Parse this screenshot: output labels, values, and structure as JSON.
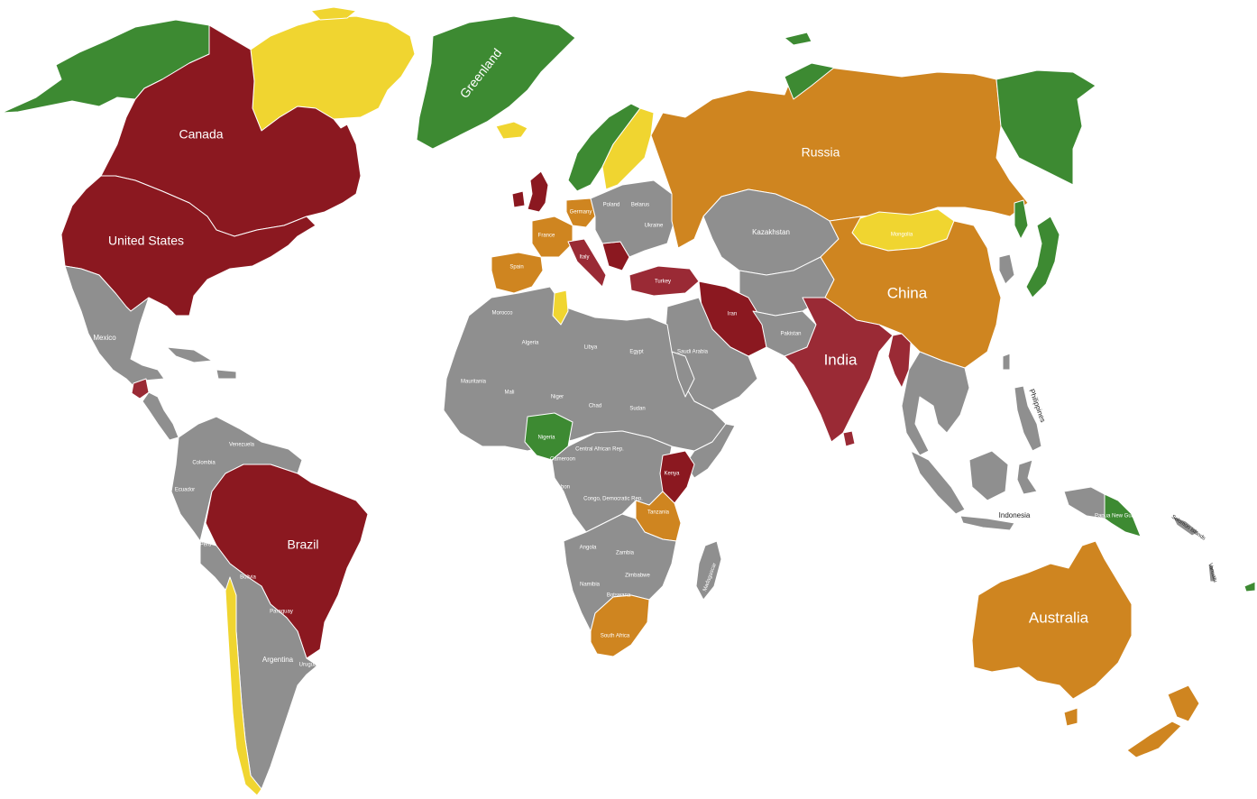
{
  "colors": {
    "dark_red": "#8b1820",
    "red": "#9a2a35",
    "orange": "#cf8520",
    "yellow": "#f0d530",
    "green": "#3d8a32",
    "gray": "#8f8f8f",
    "ocean": "#ffffff"
  },
  "labels": {
    "canada": "Canada",
    "united_states": "United States",
    "greenland": "Greenland",
    "russia": "Russia",
    "china": "China",
    "india": "India",
    "brazil": "Brazil",
    "australia": "Australia",
    "kazakhstan": "Kazakhstan",
    "mongolia": "Mongolia",
    "mexico": "Mexico",
    "indonesia": "Indonesia",
    "philippines": "Philippines",
    "argentina": "Argentina",
    "peru": "Peru",
    "bolivia": "Bolivia",
    "paraguay": "Paraguay",
    "uruguay": "Uruguay",
    "ecuador": "Ecuador",
    "colombia": "Colombia",
    "venezuela": "Venezuela",
    "spain": "Spain",
    "france": "France",
    "germany": "Germany",
    "poland": "Poland",
    "ukraine": "Ukraine",
    "belarus": "Belarus",
    "turkey": "Turkey",
    "iran": "Iran",
    "saudi_arabia": "Saudi Arabia",
    "egypt": "Egypt",
    "libya": "Libya",
    "algeria": "Algeria",
    "morocco": "Morocco",
    "mauritania": "Mauritania",
    "mali": "Mali",
    "niger": "Niger",
    "chad": "Chad",
    "sudan": "Sudan",
    "nigeria": "Nigeria",
    "car": "Central African Rep.",
    "cameroon": "Cameroon",
    "gabon": "Gabon",
    "drc": "Congo, Democratic Rep.",
    "kenya": "Kenya",
    "tanzania": "Tanzania",
    "angola": "Angola",
    "zambia": "Zambia",
    "zimbabwe": "Zimbabwe",
    "namibia": "Namibia",
    "botswana": "Botswana",
    "south_africa": "South Africa",
    "madagascar": "Madagascar",
    "papua_new_guinea": "Papua New Guinea",
    "solomon_islands": "Solomon Islands",
    "vanuatu": "Vanuatu",
    "italy": "Italy",
    "pakistan": "Pakistan"
  }
}
